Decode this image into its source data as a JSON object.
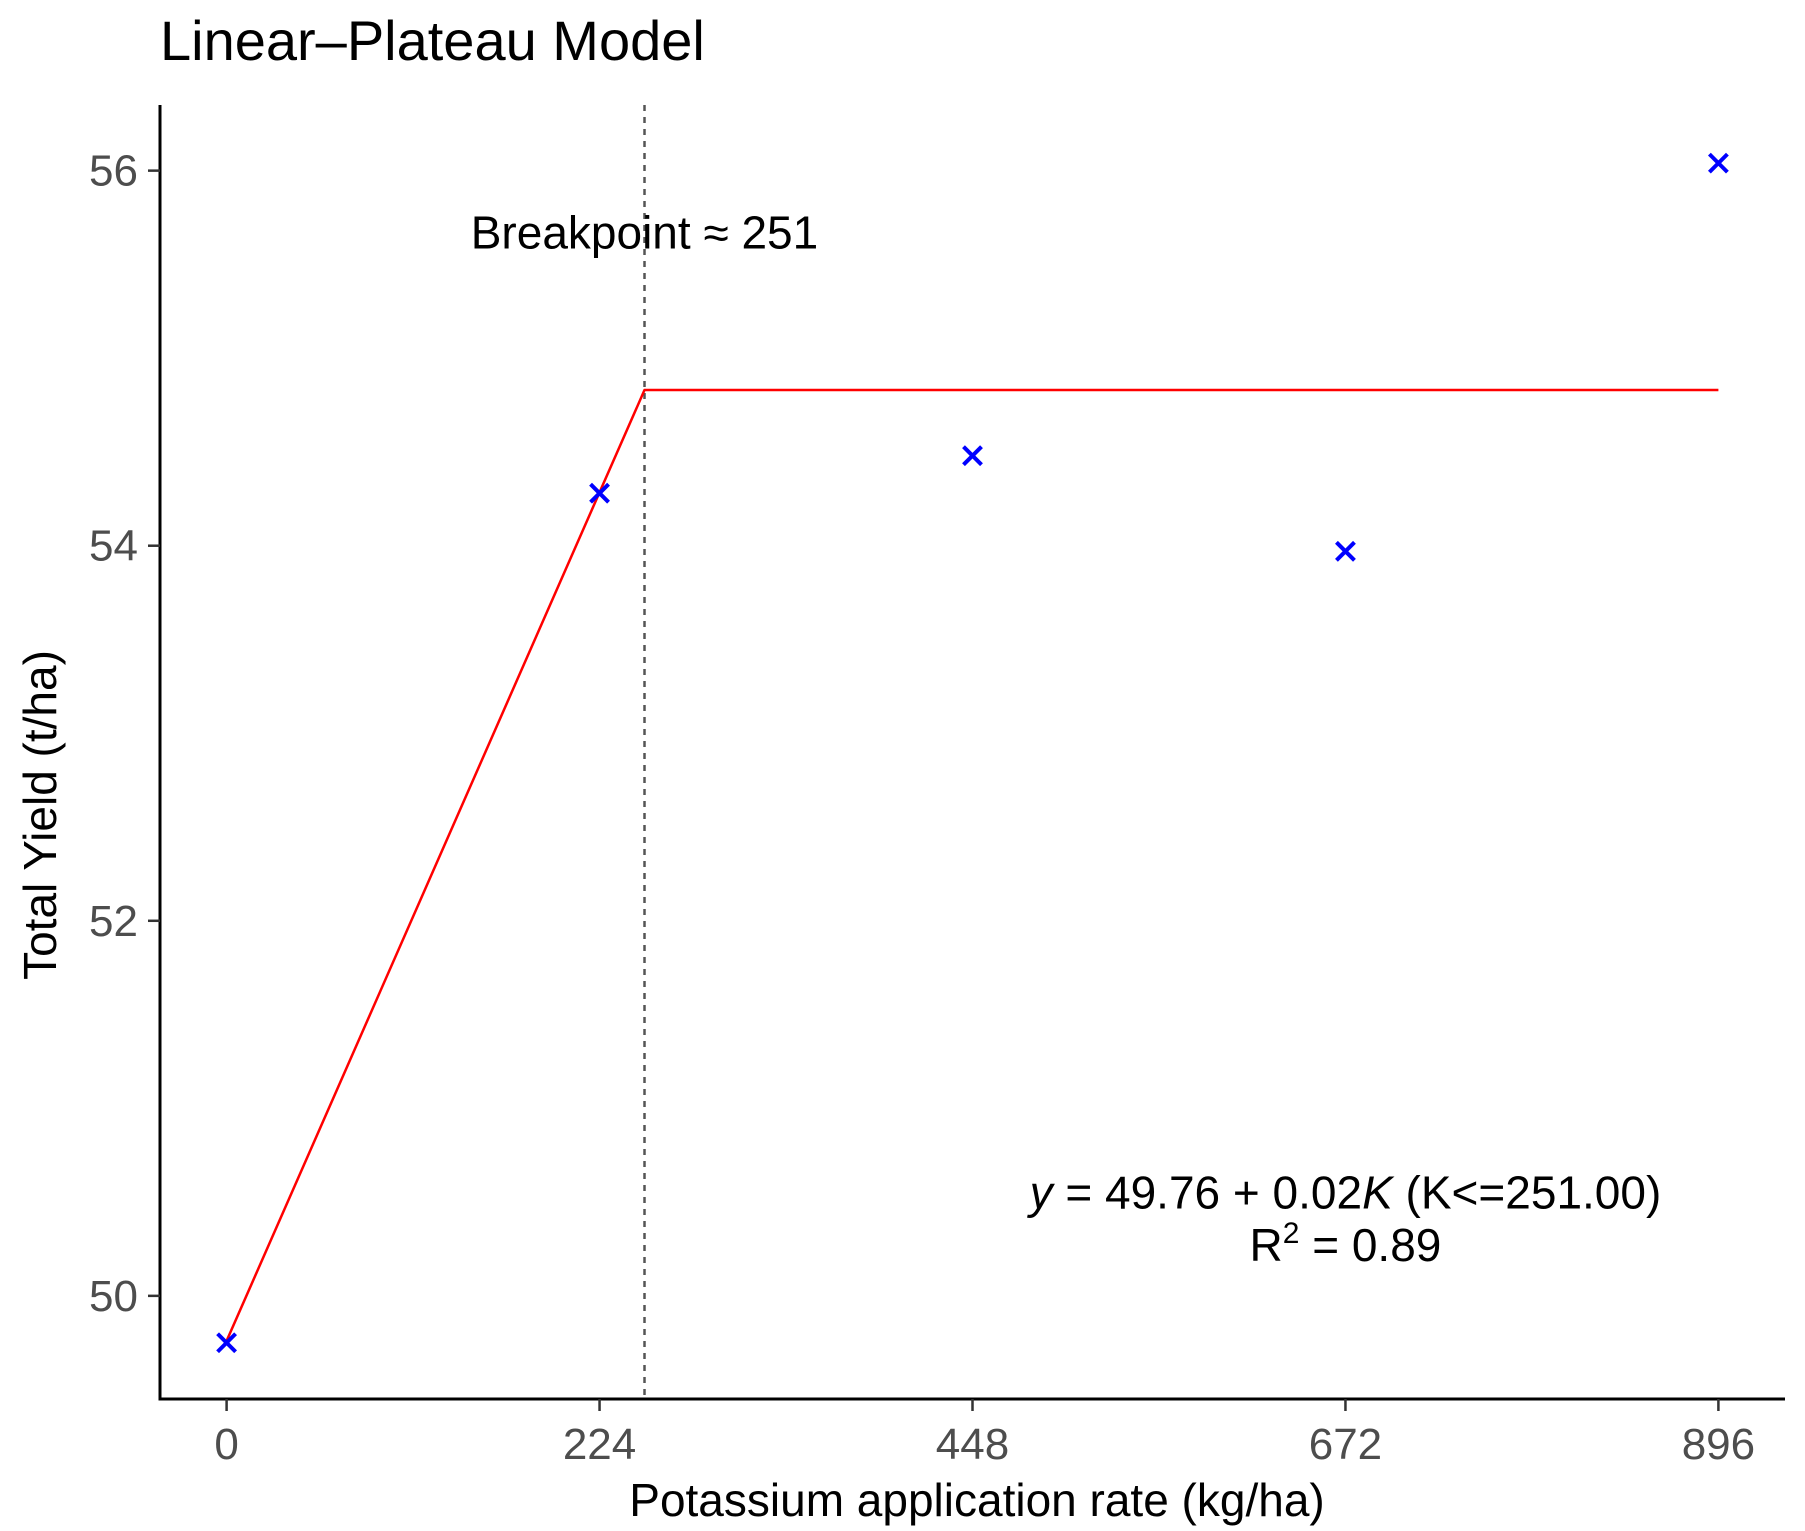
{
  "chart_data": {
    "type": "scatter",
    "title": "Linear–Plateau Model",
    "xlabel": "Potassium application rate (kg/ha)",
    "ylabel": "Total Yield (t/ha)",
    "xlim": [
      -40,
      936
    ],
    "ylim": [
      49.45,
      56.35
    ],
    "x_ticks": [
      0,
      224,
      448,
      672,
      896
    ],
    "x_tick_labels": [
      "0",
      "224",
      "448",
      "672",
      "896"
    ],
    "y_ticks": [
      50,
      52,
      54,
      56
    ],
    "y_tick_labels": [
      "50",
      "52",
      "54",
      "56"
    ],
    "grid": false,
    "series": [
      {
        "name": "observed",
        "kind": "points",
        "marker": "x",
        "color": "#0000ff",
        "x": [
          0,
          224,
          448,
          672,
          896
        ],
        "y": [
          49.75,
          54.28,
          54.48,
          53.97,
          56.04
        ]
      },
      {
        "name": "linear-plateau fit",
        "kind": "line",
        "color": "#ff0000",
        "x": [
          0,
          251,
          896
        ],
        "y": [
          49.76,
          54.83,
          54.83
        ]
      }
    ],
    "breakpoint": {
      "x": 251,
      "label": "Breakpoint ≈ 251",
      "line_color": "#555555"
    },
    "equation": {
      "y_var": "y",
      "eq_middle": " = 49.76 + 0.02",
      "k_var": "K",
      "eq_tail": " (K<=251.00)",
      "r_prefix": "R",
      "r_sup": "2",
      "r_value": " = 0.89"
    }
  }
}
